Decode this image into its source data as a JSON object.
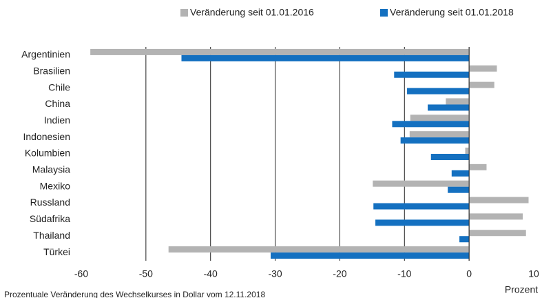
{
  "chart_data": {
    "type": "hbar",
    "categories": [
      "Argentinien",
      "Brasilien",
      "Chile",
      "China",
      "Indien",
      "Indonesien",
      "Kolumbien",
      "Malaysia",
      "Mexiko",
      "Russland",
      "Südafrika",
      "Thailand",
      "Türkei"
    ],
    "series": [
      {
        "name": "Veränderung seit 01.01.2016",
        "color": "#b3b3b3",
        "values": [
          -58.6,
          4.3,
          3.9,
          -3.6,
          -9.1,
          -9.2,
          -0.6,
          2.7,
          -14.9,
          9.2,
          8.3,
          8.8,
          -46.5
        ]
      },
      {
        "name": "Veränderung seit 01.01.2018",
        "color": "#1470c0",
        "values": [
          -44.5,
          -11.6,
          -9.6,
          -6.4,
          -11.9,
          -10.6,
          -5.9,
          -2.7,
          -3.3,
          -14.8,
          -14.5,
          -1.5,
          -30.7
        ]
      }
    ],
    "xlim": [
      -60,
      10
    ],
    "xticks": [
      -60,
      -50,
      -40,
      -30,
      -20,
      -10,
      0,
      10
    ],
    "xlabel": "Prozent",
    "note": "Prozentuale Veränderung des Wechselkurses in Dollar vom 12.11.2018",
    "grid": true,
    "legend": "top"
  }
}
